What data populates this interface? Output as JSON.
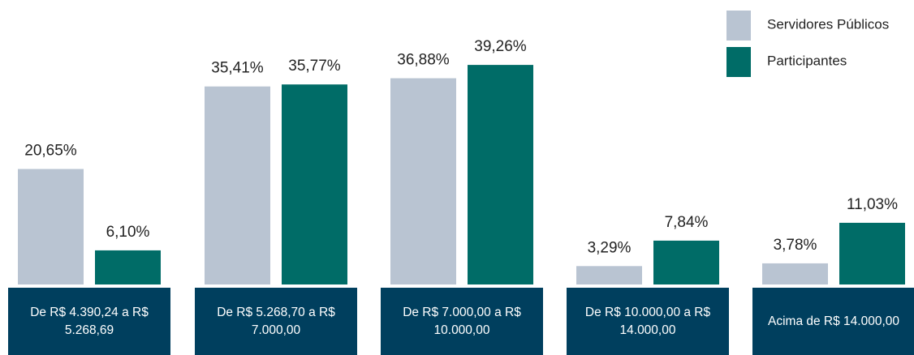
{
  "chart_data": {
    "type": "bar",
    "categories": [
      "De R$ 4.390,24 a R$ 5.268,69",
      "De R$ 5.268,70 a R$ 7.000,00",
      "De R$ 7.000,00 a R$ 10.000,00",
      "De R$ 10.000,00 a R$ 14.000,00",
      "Acima de R$ 14.000,00"
    ],
    "series": [
      {
        "name": "Servidores Públicos",
        "color": "#b9c4d2",
        "values": [
          20.65,
          35.41,
          36.88,
          3.29,
          3.78
        ],
        "value_labels": [
          "20,65%",
          "35,41%",
          "36,88%",
          "3,29%",
          "3,78%"
        ]
      },
      {
        "name": "Participantes",
        "color": "#006c67",
        "values": [
          6.1,
          35.77,
          39.26,
          7.84,
          11.03
        ],
        "value_labels": [
          "6,10%",
          "35,77%",
          "39,26%",
          "7,84%",
          "11,03%"
        ]
      }
    ],
    "category_color": "#003f5e",
    "legend": "top-right"
  }
}
